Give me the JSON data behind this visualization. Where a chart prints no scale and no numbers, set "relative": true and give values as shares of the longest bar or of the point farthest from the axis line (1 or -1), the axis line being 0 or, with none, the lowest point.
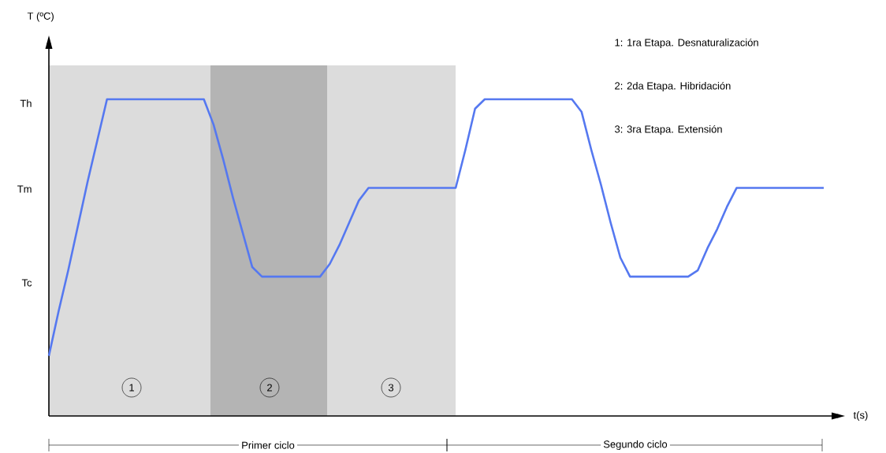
{
  "chart_data": {
    "type": "line",
    "relative": true,
    "categories": [
      null,
      null,
      null,
      null,
      null,
      null,
      null,
      null,
      null,
      null,
      null,
      null,
      null,
      null,
      null,
      null,
      null,
      null,
      null,
      null,
      null,
      null,
      null,
      null,
      null,
      null,
      null,
      null,
      null,
      null,
      null,
      null,
      null,
      null,
      null,
      null,
      null,
      null,
      null,
      null,
      null,
      null,
      null,
      null,
      null,
      null,
      null,
      null,
      null,
      null,
      null,
      null,
      null,
      null,
      null,
      null,
      null,
      null,
      null,
      null,
      null,
      null,
      null,
      null,
      null,
      null,
      null,
      null,
      null,
      null,
      null,
      null,
      null,
      null,
      null,
      null,
      null,
      null,
      null,
      null,
      null
    ],
    "series": [
      {
        "color": "#5578f0",
        "values": [
          0.19,
          0.33,
          0.46,
          0.6,
          0.74,
          0.87,
          1,
          1,
          1,
          1,
          1,
          1,
          1,
          1,
          1,
          1,
          1,
          0.92,
          0.81,
          0.69,
          0.58,
          0.47,
          0.44,
          0.44,
          0.44,
          0.44,
          0.44,
          0.44,
          0.44,
          0.48,
          0.54,
          0.61,
          0.68,
          0.72,
          0.72,
          0.72,
          0.72,
          0.72,
          0.72,
          0.72,
          0.72,
          0.72,
          0.72,
          0.84,
          0.97,
          1,
          1,
          1,
          1,
          1,
          1,
          1,
          1,
          1,
          1,
          0.96,
          0.84,
          0.73,
          0.61,
          0.5,
          0.44,
          0.44,
          0.44,
          0.44,
          0.44,
          0.44,
          0.44,
          0.46,
          0.53,
          0.59,
          0.66,
          0.72,
          0.72,
          0.72,
          0.72,
          0.72,
          0.72,
          0.72,
          0.72,
          0.72,
          0.72
        ]
      }
    ],
    "xlabel": "t(s)",
    "annotations": [
      "T (ºC)",
      "Th",
      "Tm",
      "Tc",
      "1: 1ra Etapa. Desnaturalización",
      "2: 2da Etapa. Hibridación",
      "3: 3ra Etapa. Extensión",
      "1",
      "2",
      "3",
      "Primer ciclo",
      "Segundo ciclo"
    ],
    "marker": "none",
    "line_style": "solid"
  }
}
